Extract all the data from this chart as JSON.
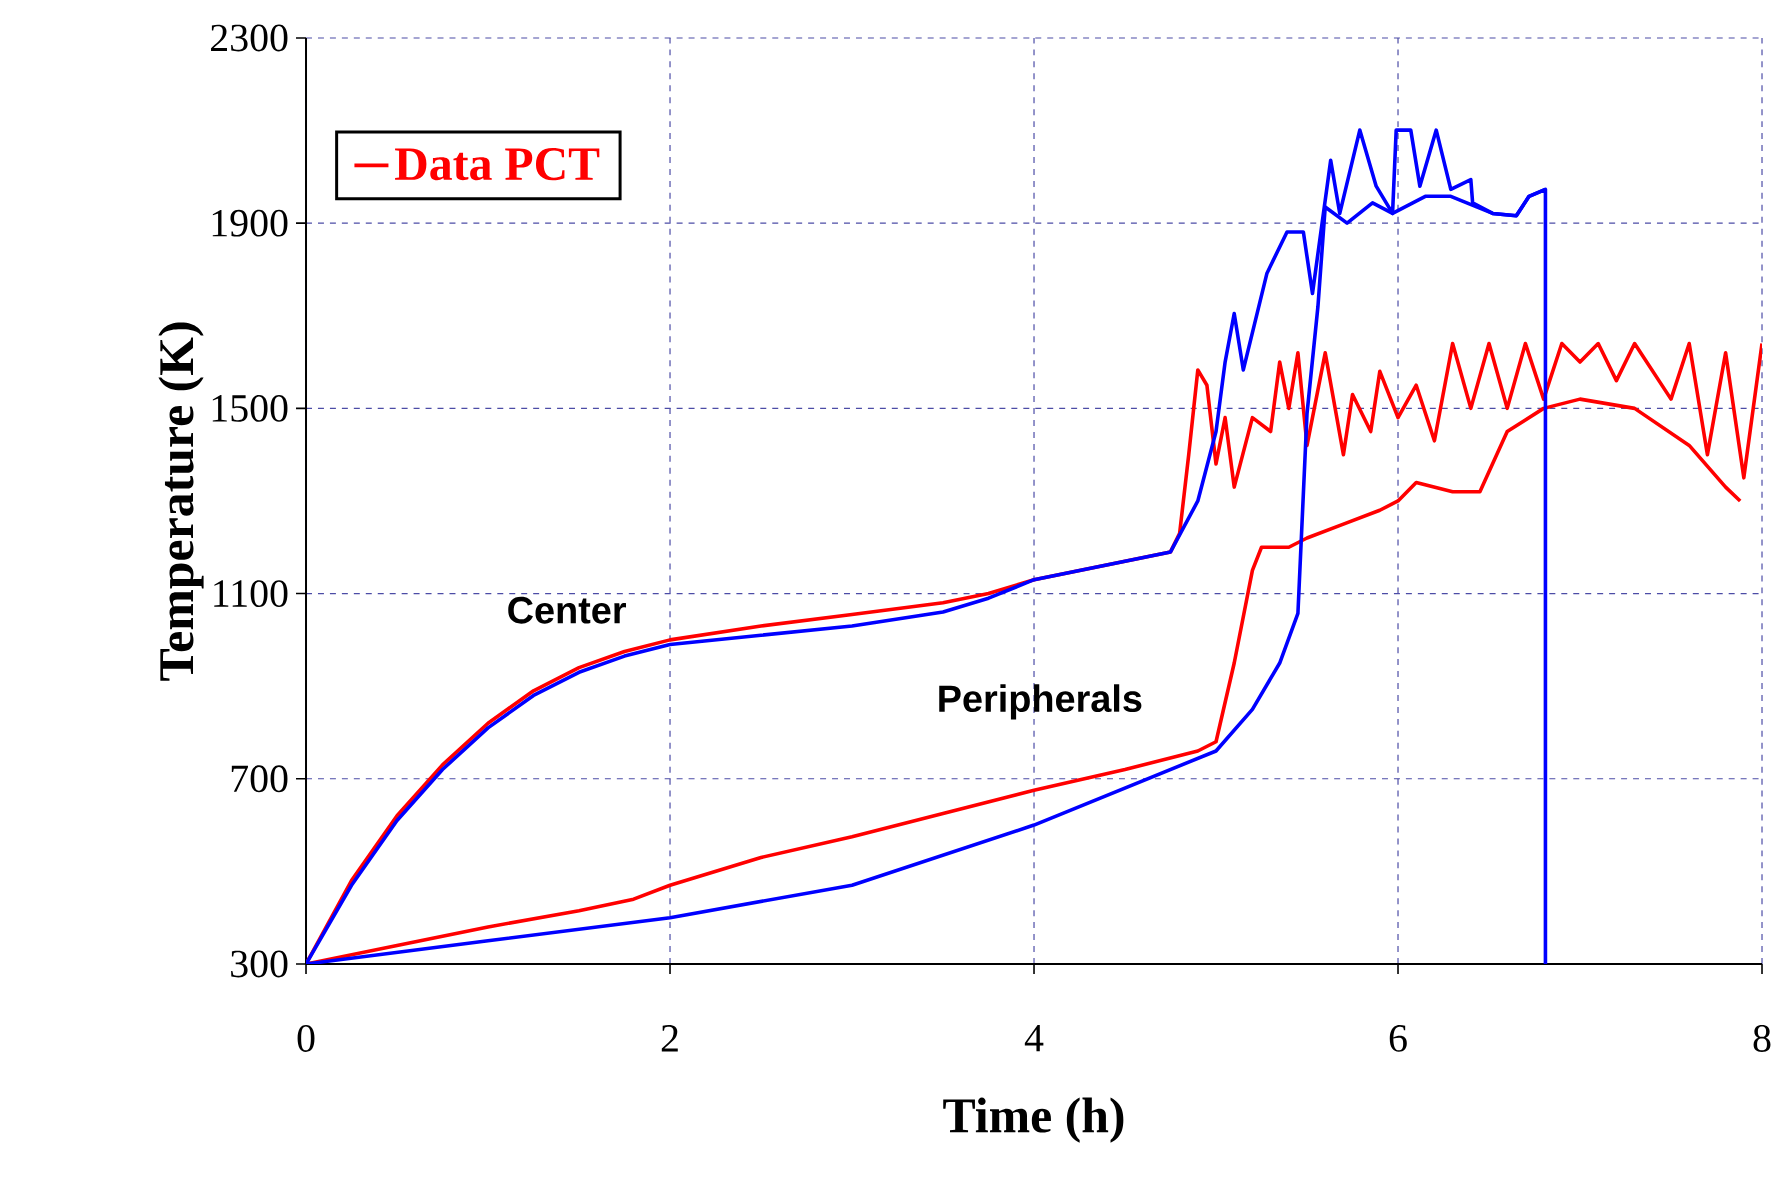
{
  "chart_data": {
    "type": "line",
    "xlabel": "Time (h)",
    "ylabel": "Temperature (K)",
    "xlim": [
      0,
      8
    ],
    "ylim": [
      300,
      2300
    ],
    "xticks": [
      0,
      2,
      4,
      6,
      8
    ],
    "yticks": [
      300,
      700,
      1100,
      1500,
      1900,
      2300
    ],
    "grid": true,
    "legend": "top left",
    "marker": "none",
    "line_style": "solid",
    "annotations": [
      "Center",
      "Peripherals"
    ],
    "series": [
      {
        "name": "Data PCT",
        "color": "#ff0000",
        "x": [
          0,
          0.25,
          0.5,
          0.75,
          1,
          1.25,
          1.5,
          1.75,
          2,
          2.5,
          3,
          3.5,
          3.75,
          4,
          4.5,
          4.75,
          4.8,
          4.85,
          4.9,
          4.95,
          5.0,
          5.05,
          5.1,
          5.2,
          5.3,
          5.35,
          5.4,
          5.45,
          5.5,
          5.6,
          5.7,
          5.75,
          5.85,
          5.9,
          6.0,
          6.1,
          6.2,
          6.3,
          6.4,
          6.5,
          6.6,
          6.7,
          6.8,
          6.9,
          7.0,
          7.1,
          7.2,
          7.3,
          7.5,
          7.6,
          7.7,
          7.8,
          7.9,
          8.0
        ],
        "values": [
          300,
          480,
          620,
          730,
          820,
          890,
          940,
          975,
          1000,
          1030,
          1055,
          1080,
          1100,
          1130,
          1170,
          1190,
          1230,
          1400,
          1583,
          1550,
          1380,
          1480,
          1330,
          1480,
          1450,
          1600,
          1500,
          1620,
          1420,
          1620,
          1400,
          1530,
          1450,
          1580,
          1480,
          1550,
          1430,
          1640,
          1500,
          1640,
          1500,
          1640,
          1520,
          1640,
          1600,
          1640,
          1560,
          1640,
          1520,
          1640,
          1400,
          1620,
          1350,
          1640
        ]
      },
      {
        "color": "#ff0000",
        "x": [
          0,
          0.5,
          1,
          1.5,
          1.8,
          2,
          2.5,
          3,
          3.5,
          4,
          4.5,
          4.9,
          5.0,
          5.1,
          5.2,
          5.25,
          5.4,
          5.5,
          5.7,
          5.9,
          6.0,
          6.1,
          6.3,
          6.45,
          6.6,
          6.8,
          7.0,
          7.3,
          7.6,
          7.8,
          7.88
        ],
        "values": [
          300,
          340,
          380,
          415,
          440,
          470,
          530,
          575,
          625,
          675,
          720,
          760,
          780,
          950,
          1150,
          1200,
          1200,
          1220,
          1250,
          1280,
          1300,
          1340,
          1320,
          1320,
          1450,
          1500,
          1520,
          1500,
          1420,
          1330,
          1300
        ]
      },
      {
        "color": "#0000ff",
        "x": [
          0,
          0.25,
          0.5,
          0.75,
          1,
          1.25,
          1.5,
          1.75,
          2,
          2.5,
          3,
          3.5,
          3.75,
          4,
          4.5,
          4.75,
          4.9,
          5.0,
          5.05,
          5.1,
          5.15,
          5.28,
          5.39,
          5.48,
          5.53,
          5.63,
          5.68,
          5.79,
          5.88,
          5.97,
          5.99,
          6.07,
          6.12,
          6.21,
          6.29,
          6.4,
          6.41,
          6.52,
          6.65,
          6.72,
          6.81,
          6.81
        ],
        "values": [
          300,
          470,
          610,
          720,
          810,
          880,
          930,
          965,
          990,
          1010,
          1030,
          1060,
          1090,
          1130,
          1170,
          1190,
          1300,
          1450,
          1600,
          1705,
          1583,
          1792,
          1881,
          1881,
          1748,
          2036,
          1921,
          2101,
          1980,
          1921,
          2101,
          2101,
          1980,
          2101,
          1973,
          1994,
          1944,
          1921,
          1916,
          1958,
          1973,
          300
        ]
      },
      {
        "color": "#0000ff",
        "x": [
          0,
          1,
          2,
          3,
          4,
          4.5,
          5.0,
          5.2,
          5.35,
          5.45,
          5.5,
          5.56,
          5.6,
          5.72,
          5.86,
          5.97,
          6.15,
          6.29,
          6.52,
          6.65,
          6.72,
          6.81
        ],
        "values": [
          300,
          350,
          400,
          470,
          600,
          680,
          760,
          850,
          950,
          1057,
          1489,
          1720,
          1935,
          1900,
          1944,
          1921,
          1958,
          1958,
          1921,
          1916,
          1958,
          1973
        ]
      }
    ]
  }
}
